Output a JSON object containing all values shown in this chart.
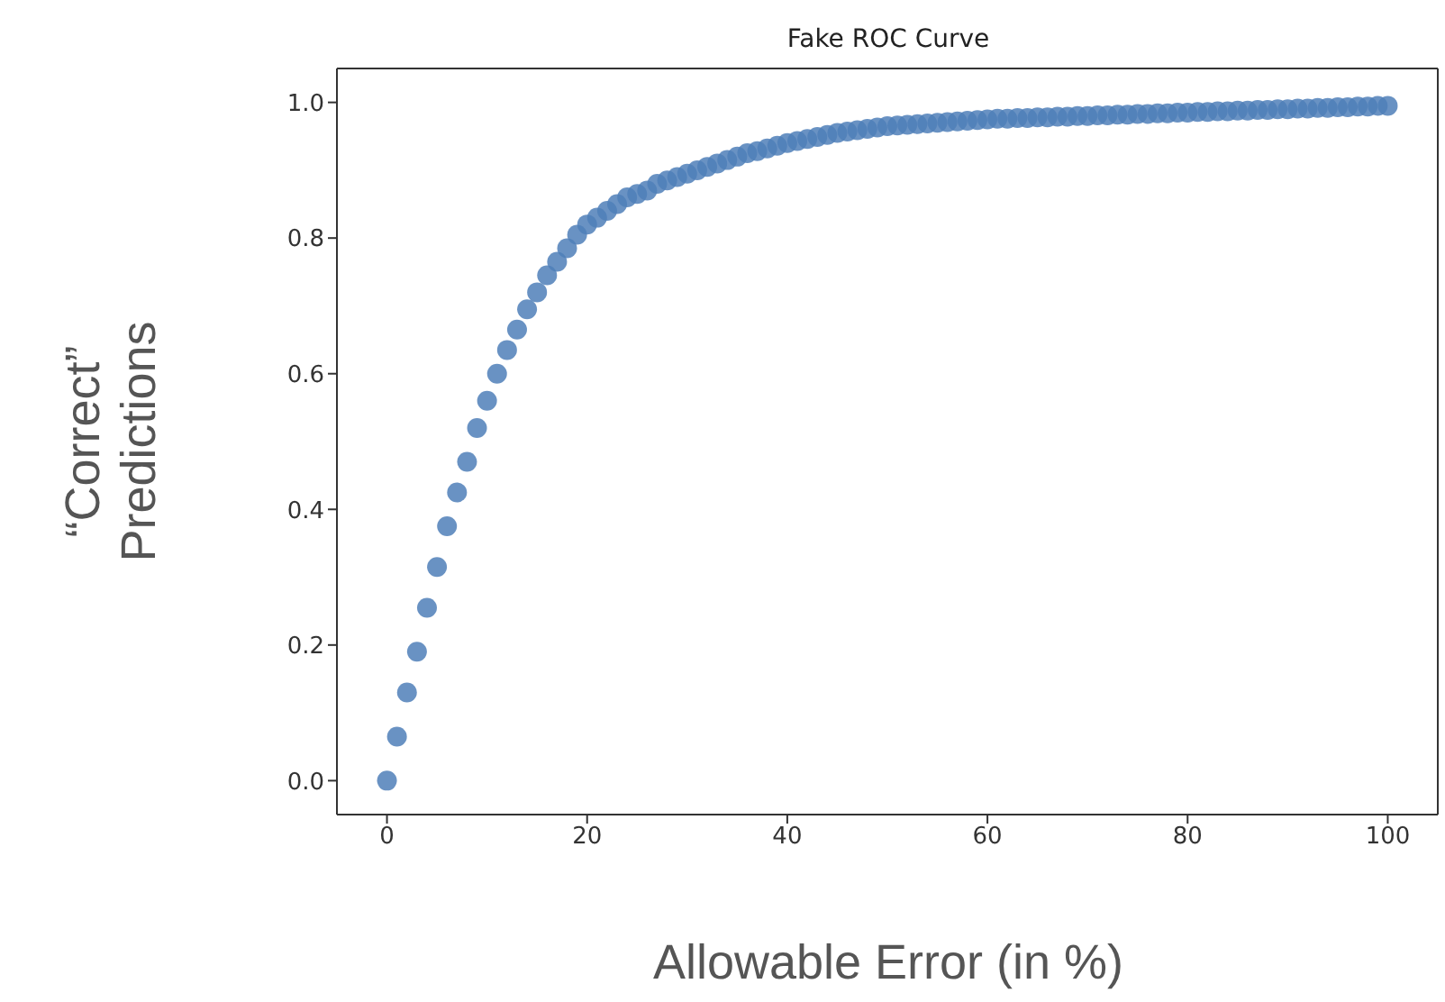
{
  "chart_data": {
    "type": "scatter",
    "title": "Fake ROC Curve",
    "xlabel": "Allowable Error (in %)",
    "ylabel": "“Correct”\nPredictions",
    "x": [
      0,
      1,
      2,
      3,
      4,
      5,
      6,
      7,
      8,
      9,
      10,
      11,
      12,
      13,
      14,
      15,
      16,
      17,
      18,
      19,
      20,
      21,
      22,
      23,
      24,
      25,
      26,
      27,
      28,
      29,
      30,
      31,
      32,
      33,
      34,
      35,
      36,
      37,
      38,
      39,
      40,
      41,
      42,
      43,
      44,
      45,
      46,
      47,
      48,
      49,
      50,
      51,
      52,
      53,
      54,
      55,
      56,
      57,
      58,
      59,
      60,
      61,
      62,
      63,
      64,
      65,
      66,
      67,
      68,
      69,
      70,
      71,
      72,
      73,
      74,
      75,
      76,
      77,
      78,
      79,
      80,
      81,
      82,
      83,
      84,
      85,
      86,
      87,
      88,
      89,
      90,
      91,
      92,
      93,
      94,
      95,
      96,
      97,
      98,
      99,
      100
    ],
    "series": [
      {
        "color": "#4f7fb8",
        "values": [
          0.0,
          0.065,
          0.13,
          0.19,
          0.255,
          0.315,
          0.375,
          0.425,
          0.47,
          0.52,
          0.56,
          0.6,
          0.635,
          0.665,
          0.695,
          0.72,
          0.745,
          0.765,
          0.785,
          0.805,
          0.82,
          0.83,
          0.84,
          0.85,
          0.86,
          0.865,
          0.87,
          0.88,
          0.885,
          0.89,
          0.895,
          0.9,
          0.905,
          0.91,
          0.915,
          0.92,
          0.925,
          0.928,
          0.932,
          0.936,
          0.94,
          0.943,
          0.946,
          0.949,
          0.952,
          0.955,
          0.957,
          0.959,
          0.961,
          0.963,
          0.965,
          0.966,
          0.967,
          0.968,
          0.969,
          0.97,
          0.971,
          0.972,
          0.973,
          0.974,
          0.975,
          0.976,
          0.976,
          0.977,
          0.977,
          0.978,
          0.978,
          0.979,
          0.979,
          0.98,
          0.98,
          0.981,
          0.981,
          0.982,
          0.982,
          0.983,
          0.983,
          0.984,
          0.984,
          0.985,
          0.985,
          0.986,
          0.986,
          0.987,
          0.987,
          0.988,
          0.988,
          0.989,
          0.989,
          0.99,
          0.99,
          0.991,
          0.991,
          0.992,
          0.992,
          0.993,
          0.993,
          0.994,
          0.994,
          0.995,
          0.995
        ]
      }
    ],
    "xlim": [
      -5,
      105
    ],
    "xticks": [
      0,
      20,
      40,
      60,
      80,
      100
    ],
    "ylim": [
      -0.05,
      1.05
    ],
    "yticks": [
      {
        "value": 0,
        "label": "0.0"
      },
      {
        "value": 0.2,
        "label": "0.2"
      },
      {
        "value": 0.4,
        "label": "0.4"
      },
      {
        "value": 0.6,
        "label": "0.6"
      },
      {
        "value": 0.8,
        "label": "0.8"
      },
      {
        "value": 1,
        "label": "1.0"
      }
    ],
    "grid": false,
    "legend": false,
    "marker": "circle"
  }
}
